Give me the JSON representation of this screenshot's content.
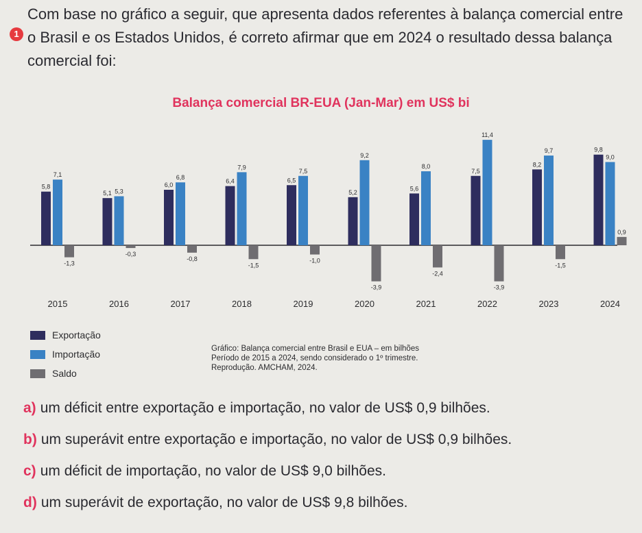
{
  "question": {
    "number": "1",
    "text": "Com base no gráfico a seguir, que apresenta dados referentes à balança comercial entre o Brasil e os Estados Unidos, é correto afirmar que em 2024 o resultado dessa balança comercial foi:"
  },
  "chart_data": {
    "type": "bar",
    "title": "Balança comercial BR-EUA (Jan-Mar) em US$ bi",
    "categories": [
      "2015",
      "2016",
      "2017",
      "2018",
      "2019",
      "2020",
      "2021",
      "2022",
      "2023",
      "2024"
    ],
    "series": [
      {
        "name": "Exportação",
        "color": "#2e2d5e",
        "values": [
          5.8,
          5.1,
          6.0,
          6.4,
          6.5,
          5.2,
          5.6,
          7.5,
          8.2,
          9.8
        ],
        "labels": [
          "5,8",
          "5,1",
          "6,0",
          "6,4",
          "6,5",
          "5,2",
          "5,6",
          "7,5",
          "8,2",
          "9,8"
        ]
      },
      {
        "name": "Importação",
        "color": "#3a82c4",
        "values": [
          7.1,
          5.3,
          6.8,
          7.9,
          7.5,
          9.2,
          8.0,
          11.4,
          9.7,
          9.0
        ],
        "labels": [
          "7,1",
          "5,3",
          "6,8",
          "7,9",
          "7,5",
          "9,2",
          "8,0",
          "11,4",
          "9,7",
          "9,0"
        ]
      },
      {
        "name": "Saldo",
        "color": "#6f6d71",
        "values": [
          -1.3,
          -0.3,
          -0.8,
          -1.5,
          -1.0,
          -3.9,
          -2.4,
          -3.9,
          -1.5,
          0.9
        ],
        "labels": [
          "-1,3",
          "-0,3",
          "-0,8",
          "-1,5",
          "-1,0",
          "-3,9",
          "-2,4",
          "-3,9",
          "-1,5",
          "0,9"
        ]
      }
    ],
    "xlabel": "",
    "ylabel": "",
    "ylim": [
      -4,
      12
    ]
  },
  "legend": {
    "items": [
      {
        "label": "Exportação",
        "color": "#2e2d5e"
      },
      {
        "label": "Importação",
        "color": "#3a82c4"
      },
      {
        "label": "Saldo",
        "color": "#6f6d71"
      }
    ]
  },
  "source": {
    "line1": "Gráfico: Balança comercial entre Brasil e EUA – em bilhões",
    "line2": "Período de 2015 a 2024, sendo considerado o 1º trimestre.",
    "line3": "Reprodução. AMCHAM, 2024."
  },
  "options": [
    {
      "letter": "a)",
      "text": "um déficit entre exportação e importação, no valor de US$ 0,9 bilhões."
    },
    {
      "letter": "b)",
      "text": "um superávit entre exportação e importação, no valor de US$ 0,9 bilhões."
    },
    {
      "letter": "c)",
      "text": "um déficit de importação, no valor de US$ 9,0 bilhões."
    },
    {
      "letter": "d)",
      "text": "um superávit de exportação, no valor de US$ 9,8 bilhões."
    }
  ]
}
